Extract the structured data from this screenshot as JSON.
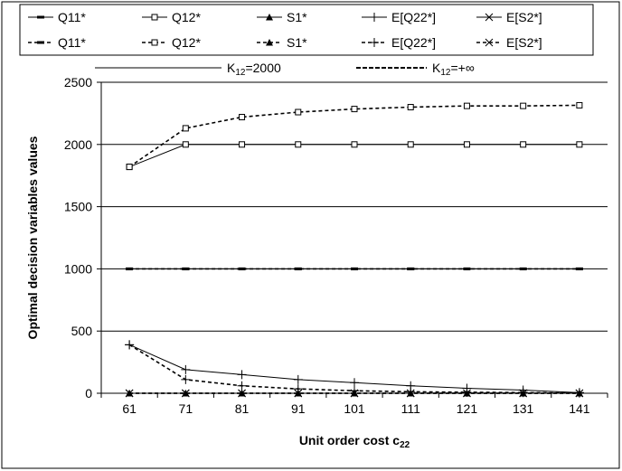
{
  "chart_data": {
    "type": "line",
    "xlabel": "Unit order cost c",
    "xlabel_sub": "22",
    "ylabel": "Optimal decision variables values",
    "x": [
      61,
      71,
      81,
      91,
      101,
      111,
      121,
      131,
      141
    ],
    "ylim": [
      0,
      2500
    ],
    "yticks": [
      0,
      500,
      1000,
      1500,
      2000,
      2500
    ],
    "grid": "horizontal",
    "legend_position": "top",
    "scenarios": [
      {
        "key": "k2000",
        "label_main": "K",
        "label_sub": "12",
        "label_rest": "=2000",
        "style": "solid"
      },
      {
        "key": "kinf",
        "label_main": "K",
        "label_sub": "12",
        "label_rest": "=+∞",
        "style": "dashed"
      }
    ],
    "series": [
      {
        "name": "Q11*",
        "scenario": "k2000",
        "marker": "dash",
        "values": [
          1000,
          1000,
          1000,
          1000,
          1000,
          1000,
          1000,
          1000,
          1000
        ]
      },
      {
        "name": "Q12*",
        "scenario": "k2000",
        "marker": "square",
        "values": [
          1820,
          2000,
          2000,
          2000,
          2000,
          2000,
          2000,
          2000,
          2000
        ]
      },
      {
        "name": "S1*",
        "scenario": "k2000",
        "marker": "triangle",
        "values": [
          0,
          0,
          0,
          0,
          0,
          0,
          0,
          0,
          0
        ]
      },
      {
        "name": "E[Q22*]",
        "scenario": "k2000",
        "marker": "plus",
        "values": [
          390,
          190,
          150,
          110,
          85,
          60,
          40,
          25,
          5
        ]
      },
      {
        "name": "E[S2*]",
        "scenario": "k2000",
        "marker": "cross",
        "values": [
          0,
          0,
          0,
          0,
          0,
          0,
          0,
          0,
          0
        ]
      },
      {
        "name": "Q11*",
        "scenario": "kinf",
        "marker": "dash",
        "values": [
          1000,
          1000,
          1000,
          1000,
          1000,
          1000,
          1000,
          1000,
          1000
        ]
      },
      {
        "name": "Q12*",
        "scenario": "kinf",
        "marker": "square",
        "values": [
          1820,
          2130,
          2220,
          2260,
          2285,
          2300,
          2310,
          2310,
          2315
        ]
      },
      {
        "name": "S1*",
        "scenario": "kinf",
        "marker": "triangle",
        "values": [
          0,
          0,
          0,
          0,
          0,
          0,
          0,
          0,
          0
        ]
      },
      {
        "name": "E[Q22*]",
        "scenario": "kinf",
        "marker": "plus",
        "values": [
          390,
          110,
          60,
          35,
          20,
          12,
          8,
          5,
          2
        ]
      },
      {
        "name": "E[S2*]",
        "scenario": "kinf",
        "marker": "cross",
        "values": [
          0,
          0,
          0,
          0,
          0,
          0,
          0,
          0,
          0
        ]
      }
    ]
  }
}
